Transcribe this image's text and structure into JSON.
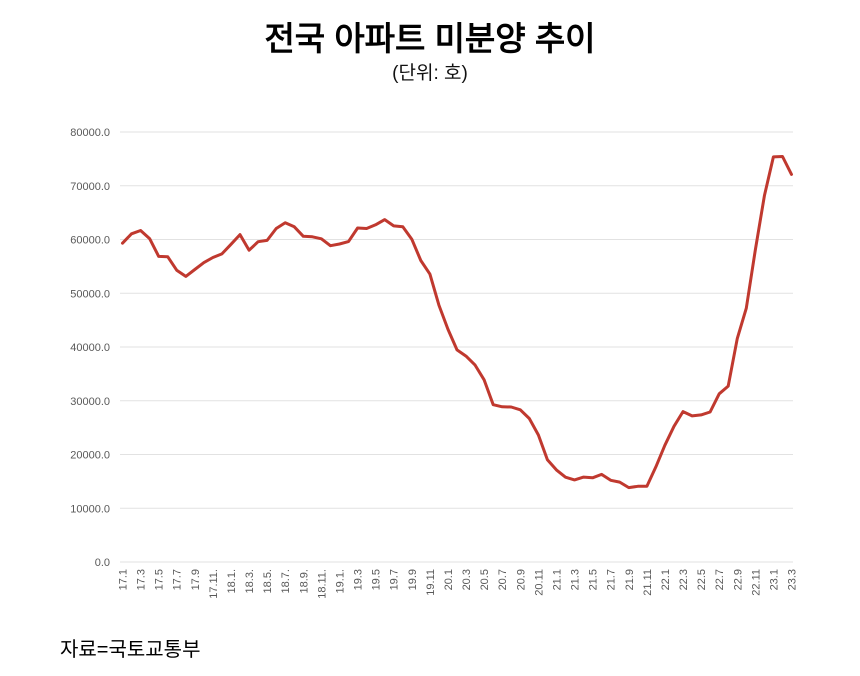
{
  "header": {
    "title": "전국 아파트 미분양 추이",
    "subtitle": "(단위: 호)"
  },
  "footer": {
    "source": "자료=국토교통부"
  },
  "colors": {
    "line": "#c0392f",
    "grid": "#e2e2e2",
    "axis_text": "#595959",
    "background": "#ffffff"
  },
  "chart_data": {
    "type": "line",
    "title": "전국 아파트 미분양 추이",
    "unit_label": "(단위: 호)",
    "source": "자료=국토교통부",
    "legend": "none",
    "grid": true,
    "ylim": [
      0,
      80000
    ],
    "y_ticks": [
      0,
      10000,
      20000,
      30000,
      40000,
      50000,
      60000,
      70000,
      80000
    ],
    "y_tick_labels": [
      "0.0",
      "10000.0",
      "20000.0",
      "30000.0",
      "40000.0",
      "50000.0",
      "60000.0",
      "70000.0",
      "80000.0"
    ],
    "x_label_rotation": -90,
    "x_tick_every": 2,
    "shown_x_tick_labels": [
      "17.1",
      "17.3",
      "17.5",
      "17.7",
      "17.9",
      "17.11.",
      "18.1.",
      "18.3.",
      "18.5.",
      "18.7.",
      "18.9.",
      "18.11.",
      "19.1.",
      "19.3",
      "19.5",
      "19.7",
      "19.9",
      "19.11",
      "20.1",
      "20.3",
      "20.5",
      "20.7",
      "20.9",
      "20.11",
      "21.1",
      "21.3",
      "21.5",
      "21.7",
      "21.9",
      "21.11",
      "22.1",
      "22.3",
      "22.5",
      "22.7",
      "22.9",
      "22.11",
      "23.1",
      "23.3"
    ],
    "x": [
      "17.1",
      "17.2",
      "17.3",
      "17.4",
      "17.5",
      "17.6",
      "17.7",
      "17.8",
      "17.9",
      "17.10",
      "17.11",
      "17.12",
      "18.1",
      "18.2",
      "18.3",
      "18.4",
      "18.5",
      "18.6",
      "18.7",
      "18.8",
      "18.9",
      "18.10",
      "18.11",
      "18.12",
      "19.1",
      "19.2",
      "19.3",
      "19.4",
      "19.5",
      "19.6",
      "19.7",
      "19.8",
      "19.9",
      "19.10",
      "19.11",
      "19.12",
      "20.1",
      "20.2",
      "20.3",
      "20.4",
      "20.5",
      "20.6",
      "20.7",
      "20.8",
      "20.9",
      "20.10",
      "20.11",
      "20.12",
      "21.1",
      "21.2",
      "21.3",
      "21.4",
      "21.5",
      "21.6",
      "21.7",
      "21.8",
      "21.9",
      "21.10",
      "21.11",
      "21.12",
      "22.1",
      "22.2",
      "22.3",
      "22.4",
      "22.5",
      "22.6",
      "22.7",
      "22.8",
      "22.9",
      "22.10",
      "22.11",
      "22.12",
      "23.1",
      "23.2",
      "23.3"
    ],
    "values": [
      59313,
      61063,
      61679,
      60161,
      56859,
      56809,
      54282,
      53130,
      54420,
      55707,
      56647,
      57330,
      59104,
      60903,
      58004,
      59583,
      59836,
      62050,
      63132,
      62370,
      60596,
      60502,
      60122,
      58838,
      59162,
      59614,
      62147,
      62041,
      62741,
      63705,
      62529,
      62385,
      60062,
      56098,
      53561,
      47797,
      43268,
      39456,
      38304,
      36629,
      33894,
      29262,
      28883,
      28831,
      28309,
      26703,
      23620,
      19005,
      17130,
      15786,
      15270,
      15798,
      15660,
      16289,
      15198,
      14864,
      13842,
      14075,
      14094,
      17710,
      21727,
      25254,
      27974,
      27180,
      27375,
      27910,
      31284,
      32722,
      41604,
      47217,
      58027,
      68148,
      75359,
      75438,
      72104
    ]
  }
}
